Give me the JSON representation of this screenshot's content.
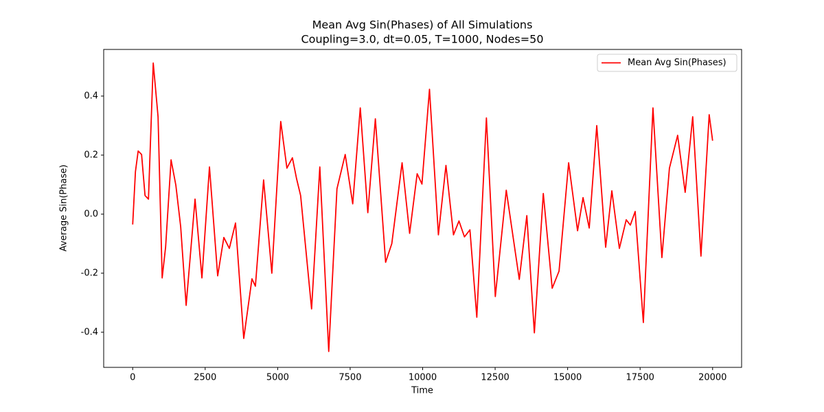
{
  "chart_data": {
    "type": "line",
    "title": "Mean Avg Sin(Phases) of All Simulations",
    "subtitle": "Coupling=3.0, dt=0.05, T=1000, Nodes=50",
    "x_label": "Time",
    "y_label": "Average Sin(Phase)",
    "x": [
      0,
      95,
      189,
      307,
      426,
      544,
      709,
      875,
      1017,
      1135,
      1324,
      1489,
      1655,
      1844,
      2151,
      2388,
      2648,
      2931,
      3144,
      3333,
      3546,
      3830,
      4113,
      4232,
      4515,
      4799,
      5106,
      5319,
      5508,
      5650,
      5792,
      6170,
      6454,
      6761,
      7045,
      7329,
      7589,
      7849,
      8109,
      8369,
      8723,
      8936,
      9291,
      9551,
      9811,
      9976,
      10236,
      10543,
      10804,
      11064,
      11253,
      11442,
      11631,
      11868,
      12199,
      12506,
      12884,
      13333,
      13593,
      13853,
      14161,
      14468,
      14704,
      15035,
      15343,
      15532,
      15745,
      16005,
      16312,
      16525,
      16785,
      17021,
      17163,
      17329,
      17612,
      17943,
      18251,
      18511,
      18794,
      19054,
      19314,
      19598,
      19882,
      20000
    ],
    "series": [
      {
        "name": "Mean Avg Sin(Phases)",
        "color": "#ff0000",
        "values": [
          -0.035,
          0.144,
          0.214,
          0.202,
          0.063,
          0.051,
          0.512,
          0.33,
          -0.216,
          -0.112,
          0.184,
          0.098,
          -0.042,
          -0.309,
          0.051,
          -0.216,
          0.16,
          -0.209,
          -0.079,
          -0.116,
          -0.03,
          -0.421,
          -0.219,
          -0.244,
          0.116,
          -0.2,
          0.314,
          0.156,
          0.191,
          0.121,
          0.063,
          -0.321,
          0.16,
          -0.465,
          0.086,
          0.202,
          0.035,
          0.36,
          0.005,
          0.323,
          -0.163,
          -0.1,
          0.174,
          -0.065,
          0.137,
          0.102,
          0.423,
          -0.07,
          0.165,
          -0.07,
          -0.023,
          -0.077,
          -0.053,
          -0.349,
          0.326,
          -0.279,
          0.081,
          -0.221,
          -0.005,
          -0.402,
          0.07,
          -0.251,
          -0.193,
          0.174,
          -0.056,
          0.056,
          -0.047,
          0.3,
          -0.112,
          0.079,
          -0.116,
          -0.019,
          -0.037,
          0.009,
          -0.367,
          0.36,
          -0.147,
          0.156,
          0.267,
          0.074,
          0.33,
          -0.142,
          0.337,
          0.249
        ]
      }
    ],
    "xlim": [
      -1000,
      21000
    ],
    "ylim": [
      -0.519,
      0.558
    ],
    "xticks": [
      0,
      2500,
      5000,
      7500,
      10000,
      12500,
      15000,
      17500,
      20000
    ],
    "yticks": [
      -0.4,
      -0.2,
      {
        "value": 0,
        "label": "0.0"
      },
      0.2,
      0.4
    ],
    "grid": false,
    "legend": "upper right"
  }
}
